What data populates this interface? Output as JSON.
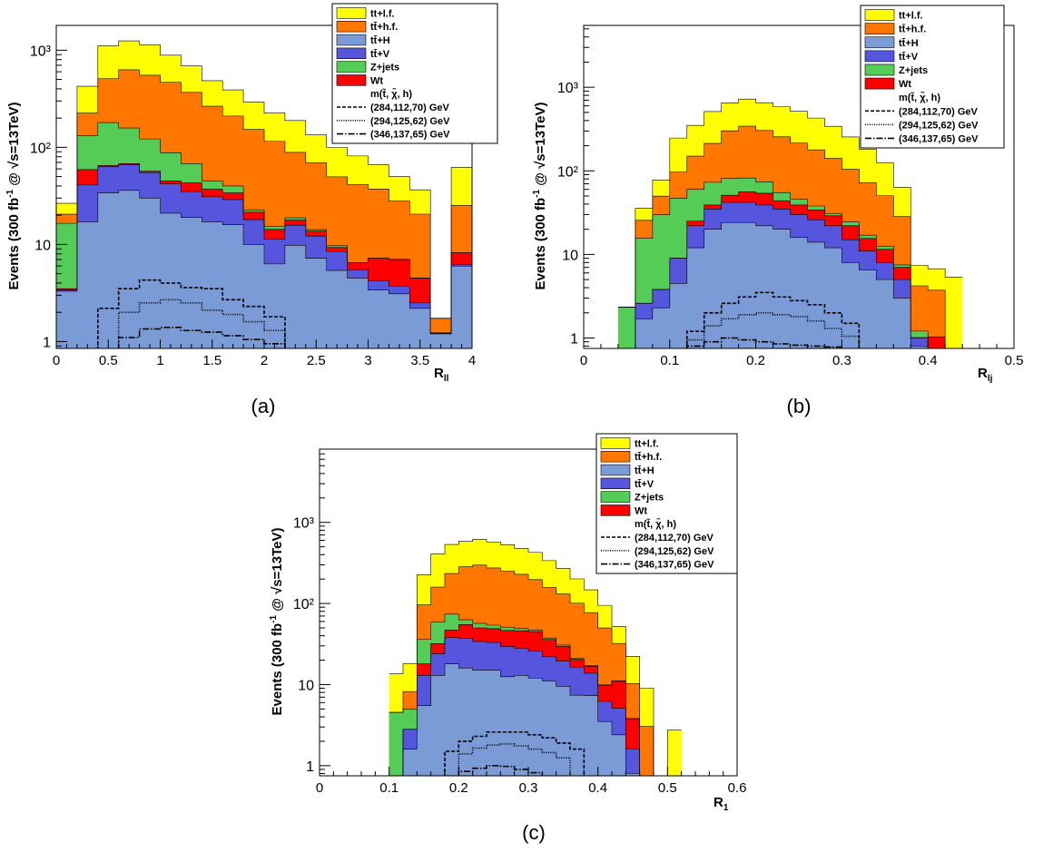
{
  "legend": {
    "entries": [
      {
        "key": "ttlf",
        "label": "tt+l.f.",
        "color": "#ffff00",
        "kind": "fill"
      },
      {
        "key": "tthf",
        "label": "tt̄+h.f.",
        "color": "#ff7700",
        "kind": "fill"
      },
      {
        "key": "tth",
        "label": "tt̄+H",
        "color": "#7a9bd6",
        "kind": "fill"
      },
      {
        "key": "ttv",
        "label": "tt̄+V",
        "color": "#5555dd",
        "kind": "fill"
      },
      {
        "key": "zjets",
        "label": "Z+jets",
        "color": "#55cc55",
        "kind": "fill"
      },
      {
        "key": "wt",
        "label": "Wt",
        "color": "#ff0000",
        "kind": "fill"
      },
      {
        "key": "header",
        "label": "m(t̃, χ̃, h)",
        "kind": "header"
      },
      {
        "key": "s1",
        "label": "(284,112,70) GeV",
        "kind": "line",
        "dash": "4,2"
      },
      {
        "key": "s2",
        "label": "(294,125,62) GeV",
        "kind": "line",
        "dash": "1,1.5"
      },
      {
        "key": "s3",
        "label": "(346,137,65) GeV",
        "kind": "line",
        "dash": "7,2,1.5,2"
      }
    ]
  },
  "chart_data": [
    {
      "id": "a",
      "type": "bar",
      "stacked": true,
      "caption": "(a)",
      "xlabel": "R",
      "xlabel_sub": "ll",
      "ylabel_parts": [
        "Events (300 fb",
        "-1",
        " @ ",
        "√s=13TeV)"
      ],
      "xlim": [
        0,
        4
      ],
      "ylim": [
        0.85,
        1800
      ],
      "xticks": [
        0,
        0.5,
        1,
        1.5,
        2,
        2.5,
        3,
        3.5,
        4
      ],
      "xtick_labels": [
        "0",
        "0.5",
        "1",
        "1.5",
        "2",
        "2.5",
        "3",
        "3.5",
        "4"
      ],
      "yticks": [
        1,
        10,
        100,
        1000
      ],
      "ytick_labels": [
        "1",
        "10",
        "10²",
        "10³"
      ],
      "edges": [
        0,
        0.2,
        0.4,
        0.6,
        0.8,
        1.0,
        1.2,
        1.4,
        1.6,
        1.8,
        2.0,
        2.2,
        2.4,
        2.6,
        2.8,
        3.0,
        3.2,
        3.4,
        3.6,
        3.8,
        4.0
      ],
      "series": [
        {
          "key": "tth",
          "name": "tt̄+H",
          "values": [
            3.3,
            17,
            34,
            36,
            30,
            21,
            19,
            17,
            16,
            10,
            6.3,
            9.8,
            7.2,
            5.4,
            4.5,
            3.4,
            3.1,
            2.2,
            1.2,
            6.0
          ]
        },
        {
          "key": "ttv",
          "name": "tt̄+V",
          "values": [
            0.1,
            24,
            29,
            30,
            25,
            21,
            16,
            14,
            13,
            8,
            5,
            6,
            5,
            3,
            1,
            0.8,
            0.6,
            0.3,
            0.01,
            0.2
          ]
        },
        {
          "key": "wt",
          "name": "Wt",
          "values": [
            0.1,
            18,
            2,
            2,
            2,
            3,
            8,
            6,
            5,
            3.5,
            3,
            2,
            1.5,
            0.9,
            1,
            3,
            3.3,
            2,
            0.01,
            2
          ]
        },
        {
          "key": "zjets",
          "name": "Z+jets",
          "values": [
            13,
            73,
            115,
            90,
            65,
            43,
            25,
            8,
            6,
            1.2,
            1,
            1,
            0.5,
            0.4,
            0.01,
            0.01,
            0.01,
            0.01,
            0.01,
            0.01
          ]
        },
        {
          "key": "tthf",
          "name": "tt̄+h.f.",
          "values": [
            4,
            93,
            330,
            470,
            430,
            380,
            300,
            220,
            170,
            130,
            100,
            70,
            55,
            40,
            35,
            30,
            21,
            16,
            0.5,
            17
          ]
        },
        {
          "key": "ttlf",
          "name": "tt+l.f.",
          "values": [
            6,
            200,
            600,
            620,
            580,
            420,
            320,
            220,
            180,
            140,
            110,
            100,
            65,
            50,
            40,
            29,
            22,
            16,
            0.01,
            37
          ]
        }
      ],
      "signals": [
        {
          "key": "s1",
          "name": "(284,112,70) GeV",
          "edges": [
            0.4,
            0.6,
            0.8,
            1.0,
            1.2,
            1.4,
            1.6,
            1.8,
            2.0,
            2.2
          ],
          "values": [
            2.2,
            3.5,
            4.3,
            4.0,
            3.6,
            3.5,
            2.7,
            2.3,
            1.8
          ]
        },
        {
          "key": "s2",
          "name": "(294,125,62) GeV",
          "edges": [
            0.6,
            0.8,
            1.0,
            1.2,
            1.4,
            1.6,
            1.8,
            2.0,
            2.2
          ],
          "values": [
            2.0,
            2.5,
            2.7,
            2.5,
            2.1,
            1.9,
            1.6,
            1.3
          ]
        },
        {
          "key": "s3",
          "name": "(346,137,65) GeV",
          "edges": [
            0.6,
            0.8,
            1.0,
            1.2,
            1.4,
            1.6,
            1.8,
            2.0,
            2.2
          ],
          "values": [
            1.1,
            1.35,
            1.4,
            1.3,
            1.25,
            1.15,
            1.05,
            0.95
          ]
        }
      ]
    },
    {
      "id": "b",
      "type": "bar",
      "stacked": true,
      "caption": "(b)",
      "xlabel": "R",
      "xlabel_sub": "lj",
      "ylabel_parts": [
        "Events (300 fb",
        "-1",
        " @ ",
        "√s=13TeV)"
      ],
      "xlim": [
        0,
        0.5
      ],
      "ylim": [
        0.75,
        5500
      ],
      "xticks": [
        0,
        0.1,
        0.2,
        0.3,
        0.4,
        0.5
      ],
      "xtick_labels": [
        "0",
        "0.1",
        "0.2",
        "0.3",
        "0.4",
        "0.5"
      ],
      "yticks": [
        1,
        10,
        100,
        1000
      ],
      "ytick_labels": [
        "1",
        "10",
        "10²",
        "10³"
      ],
      "edges": [
        0.04,
        0.06,
        0.08,
        0.1,
        0.12,
        0.14,
        0.16,
        0.18,
        0.2,
        0.22,
        0.24,
        0.26,
        0.28,
        0.3,
        0.32,
        0.34,
        0.36,
        0.38,
        0.4,
        0.42,
        0.44
      ],
      "series": [
        {
          "key": "tth",
          "name": "tt̄+H",
          "values": [
            0.01,
            1.7,
            2.3,
            4.5,
            12,
            20,
            24,
            24,
            22,
            20,
            16,
            14,
            12,
            8,
            6.5,
            5,
            3,
            0.8,
            0.01,
            0.01
          ]
        },
        {
          "key": "ttv",
          "name": "tt̄+V",
          "values": [
            0.01,
            0.9,
            1.5,
            4.5,
            10,
            15,
            18,
            18,
            17,
            15,
            14,
            12,
            10,
            7,
            4.5,
            3,
            2,
            0.2,
            0.01,
            0.01
          ]
        },
        {
          "key": "wt",
          "name": "Wt",
          "values": [
            0.01,
            0.01,
            0.01,
            0.01,
            3,
            4,
            9,
            14,
            15,
            9,
            9,
            8,
            7,
            7,
            4.5,
            3.5,
            2,
            0.01,
            1,
            0.01
          ]
        },
        {
          "key": "zjets",
          "name": "Z+jets",
          "values": [
            2.3,
            13,
            26,
            38,
            35,
            34,
            30,
            26,
            20,
            11,
            7,
            4,
            2,
            2.5,
            1.5,
            1,
            0.5,
            0.2,
            0.01,
            0.01
          ]
        },
        {
          "key": "tthf",
          "name": "tt̄+h.f.",
          "values": [
            0.01,
            10,
            20,
            50,
            90,
            140,
            220,
            260,
            230,
            200,
            170,
            140,
            110,
            80,
            55,
            38,
            21,
            3,
            2.7,
            0.01
          ]
        },
        {
          "key": "ttlf",
          "name": "tt+l.f.",
          "values": [
            0.01,
            10,
            28,
            150,
            200,
            300,
            350,
            380,
            350,
            330,
            300,
            250,
            200,
            150,
            110,
            75,
            35,
            3.2,
            3,
            5.3
          ]
        }
      ],
      "signals": [
        {
          "key": "s1",
          "name": "(284,112,70) GeV",
          "edges": [
            0.12,
            0.14,
            0.16,
            0.18,
            0.2,
            0.22,
            0.24,
            0.26,
            0.28,
            0.3,
            0.32
          ],
          "values": [
            1.2,
            2.0,
            2.6,
            3.1,
            3.5,
            3.1,
            2.8,
            2.5,
            2.0,
            1.5
          ]
        },
        {
          "key": "s2",
          "name": "(294,125,62) GeV",
          "edges": [
            0.12,
            0.14,
            0.16,
            0.18,
            0.2,
            0.22,
            0.24,
            0.26,
            0.28,
            0.3,
            0.32
          ],
          "values": [
            0.95,
            1.4,
            1.7,
            1.9,
            2.0,
            1.9,
            1.8,
            1.6,
            1.3,
            1.05
          ]
        },
        {
          "key": "s3",
          "name": "(346,137,65) GeV",
          "edges": [
            0.12,
            0.14,
            0.16,
            0.18,
            0.2,
            0.22,
            0.24,
            0.26,
            0.28,
            0.3
          ],
          "values": [
            0.8,
            0.9,
            1.0,
            0.95,
            0.9,
            0.85,
            0.82,
            0.8,
            0.78
          ]
        }
      ]
    },
    {
      "id": "c",
      "type": "bar",
      "stacked": true,
      "caption": "(c)",
      "xlabel": "R",
      "xlabel_sub": "1",
      "ylabel_parts": [
        "Events (300 fb",
        "-1",
        " @ ",
        "√s=13TeV)"
      ],
      "xlim": [
        0,
        0.6
      ],
      "ylim": [
        0.75,
        8000
      ],
      "xticks": [
        0,
        0.1,
        0.2,
        0.3,
        0.4,
        0.5,
        0.6
      ],
      "xtick_labels": [
        "0",
        "0.1",
        "0.2",
        "0.3",
        "0.4",
        "0.5",
        "0.6"
      ],
      "yticks": [
        1,
        10,
        100,
        1000
      ],
      "ytick_labels": [
        "1",
        "10",
        "10²",
        "10³"
      ],
      "edges": [
        0.1,
        0.12,
        0.14,
        0.16,
        0.18,
        0.2,
        0.22,
        0.24,
        0.26,
        0.28,
        0.3,
        0.32,
        0.34,
        0.36,
        0.38,
        0.4,
        0.42,
        0.44,
        0.46,
        0.48,
        0.5,
        0.52
      ],
      "series": [
        {
          "key": "tth",
          "name": "tt̄+H",
          "values": [
            0.01,
            1.6,
            5.5,
            13,
            18,
            16,
            15,
            15,
            12.5,
            13,
            12,
            11,
            9.5,
            7.4,
            7.3,
            3.5,
            2.4,
            0.8,
            0.01,
            0.01,
            0.01
          ]
        },
        {
          "key": "ttv",
          "name": "tt̄+V",
          "values": [
            0.01,
            1.2,
            7.5,
            11,
            20,
            21,
            19,
            18,
            17,
            15,
            14,
            11,
            10,
            9,
            6.5,
            2.7,
            2.7,
            0.8,
            0.01,
            0.01,
            0.01
          ]
        },
        {
          "key": "wt",
          "name": "Wt",
          "values": [
            0.01,
            0.01,
            5,
            8,
            9,
            18,
            16,
            16,
            17,
            18,
            19,
            14,
            10,
            4,
            3,
            3.5,
            6,
            2.2,
            0.01,
            0.01,
            0.01
          ]
        },
        {
          "key": "zjets",
          "name": "Z+jets",
          "values": [
            4.5,
            2.2,
            18,
            27,
            27,
            8,
            7,
            5,
            4.5,
            3,
            2,
            1.5,
            1.2,
            0.5,
            0.3,
            0.2,
            0.01,
            0.01,
            0.01,
            0.01,
            0.01
          ]
        },
        {
          "key": "tthf",
          "name": "tt̄+h.f.",
          "values": [
            0.01,
            3.2,
            60,
            100,
            160,
            220,
            240,
            220,
            200,
            180,
            150,
            120,
            100,
            80,
            60,
            40,
            21,
            6.5,
            3,
            0.01,
            0.01
          ]
        },
        {
          "key": "ttlf",
          "name": "tt+l.f.",
          "values": [
            9,
            10,
            130,
            250,
            300,
            300,
            320,
            300,
            280,
            250,
            230,
            180,
            140,
            100,
            70,
            45,
            20,
            12,
            6,
            0.01,
            2.7
          ]
        }
      ],
      "signals": [
        {
          "key": "s1",
          "name": "(284,112,70) GeV",
          "edges": [
            0.18,
            0.2,
            0.22,
            0.24,
            0.26,
            0.28,
            0.3,
            0.32,
            0.34,
            0.36,
            0.38
          ],
          "values": [
            1.5,
            2.0,
            2.3,
            2.6,
            2.6,
            2.6,
            2.4,
            2.2,
            1.9,
            1.6
          ]
        },
        {
          "key": "s2",
          "name": "(294,125,62) GeV",
          "edges": [
            0.2,
            0.22,
            0.24,
            0.26,
            0.28,
            0.3,
            0.32,
            0.34,
            0.36
          ],
          "values": [
            1.4,
            1.65,
            1.8,
            1.85,
            1.75,
            1.6,
            1.45,
            1.25
          ]
        },
        {
          "key": "s3",
          "name": "(346,137,65) GeV",
          "edges": [
            0.2,
            0.22,
            0.24,
            0.26,
            0.28,
            0.3,
            0.32
          ],
          "values": [
            0.85,
            0.93,
            1.0,
            0.98,
            0.9,
            0.82
          ]
        }
      ]
    }
  ]
}
